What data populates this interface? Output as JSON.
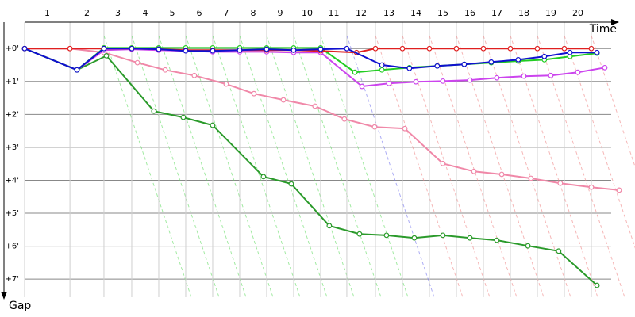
{
  "chart_data": {
    "type": "line",
    "x_label": "Time",
    "y_label": "Gap",
    "categories": [
      "1",
      "2",
      "3",
      "4",
      "5",
      "6",
      "7",
      "8",
      "9",
      "10",
      "11",
      "12",
      "13",
      "14",
      "15",
      "16",
      "17",
      "18",
      "19",
      "20"
    ],
    "x_grid": [
      0,
      1.68,
      2.94,
      3.97,
      4.97,
      5.97,
      6.97,
      7.97,
      8.97,
      9.97,
      10.97,
      11.94,
      13.0,
      14.0,
      15.0,
      16.0,
      17.0,
      18.0,
      19.0,
      20.0,
      21.0
    ],
    "xlim": [
      0,
      22.03
    ],
    "ylim": [
      -0.8,
      7.55
    ],
    "yticks": [
      {
        "value": 0,
        "label": "+0'"
      },
      {
        "value": 1,
        "label": "+1'"
      },
      {
        "value": 2,
        "label": "+2'"
      },
      {
        "value": 3,
        "label": "+3'"
      },
      {
        "value": 4,
        "label": "+4'"
      },
      {
        "value": 5,
        "label": "+5'"
      },
      {
        "value": 6,
        "label": "+6'"
      },
      {
        "value": 7,
        "label": "+7'"
      }
    ],
    "grid": true,
    "series": [
      {
        "color": "#f088a8",
        "x": [
          0,
          1.68,
          2.94,
          4.18,
          5.21,
          6.29,
          7.47,
          8.5,
          9.59,
          10.76,
          11.85,
          12.97,
          14.09,
          15.5,
          16.65,
          17.68,
          18.76,
          19.85,
          21.0,
          22.03
        ],
        "values": [
          0,
          0,
          0.12,
          0.43,
          0.65,
          0.82,
          1.08,
          1.37,
          1.56,
          1.75,
          2.14,
          2.38,
          2.43,
          3.49,
          3.73,
          3.82,
          3.94,
          4.09,
          4.21,
          4.3
        ]
      },
      {
        "color": "#2a9a2a",
        "x": [
          0,
          1.94,
          3.03,
          4.79,
          5.88,
          6.97,
          8.85,
          9.88,
          11.29,
          12.41,
          13.41,
          14.44,
          15.5,
          16.5,
          17.5,
          18.65,
          19.79,
          21.21
        ],
        "values": [
          0,
          0.65,
          0.22,
          1.9,
          2.09,
          2.33,
          3.89,
          4.11,
          5.38,
          5.63,
          5.67,
          5.75,
          5.67,
          5.75,
          5.82,
          5.99,
          6.15,
          7.19
        ]
      },
      {
        "color": "#cc44ee",
        "x": [
          0,
          1.94,
          2.94,
          3.97,
          4.97,
          5.97,
          6.97,
          7.97,
          8.97,
          9.97,
          10.97,
          12.5,
          13.5,
          14.5,
          15.5,
          16.5,
          17.5,
          18.5,
          19.5,
          20.5,
          21.5
        ],
        "values": [
          0,
          0.65,
          0.05,
          0.02,
          0.05,
          0.07,
          0.1,
          0.1,
          0.1,
          0.12,
          0.12,
          1.15,
          1.06,
          1.01,
          0.99,
          0.96,
          0.89,
          0.84,
          0.82,
          0.72,
          0.58
        ]
      },
      {
        "color": "#22cc22",
        "x": [
          0,
          1.94,
          2.94,
          3.97,
          4.97,
          5.97,
          6.97,
          7.97,
          8.97,
          9.97,
          10.97,
          12.24,
          13.24,
          14.26,
          15.29,
          16.29,
          17.29,
          18.29,
          19.26,
          20.21,
          21.21
        ],
        "values": [
          0,
          0.65,
          -0.02,
          -0.02,
          -0.02,
          -0.02,
          -0.02,
          -0.02,
          -0.02,
          -0.02,
          -0.02,
          0.72,
          0.65,
          0.58,
          0.53,
          0.48,
          0.43,
          0.38,
          0.34,
          0.24,
          0.14
        ]
      },
      {
        "color": "#e02020",
        "x": [
          0,
          1.68,
          2.94,
          3.97,
          4.97,
          5.97,
          6.97,
          7.97,
          8.97,
          9.97,
          10.97,
          12.3,
          13.0,
          14.0,
          15.0,
          16.0,
          17.0,
          18.0,
          19.0,
          20.0,
          21.0
        ],
        "values": [
          0,
          0,
          0,
          0,
          0.02,
          0.05,
          0.05,
          0.05,
          0.05,
          0.05,
          0.07,
          0.12,
          0,
          0,
          0,
          0,
          0,
          0,
          0,
          0,
          0
        ]
      },
      {
        "color": "#1010d0",
        "x": [
          0,
          1.94,
          2.94,
          3.97,
          4.97,
          5.97,
          6.97,
          7.97,
          8.97,
          9.97,
          10.97,
          11.94,
          13.24,
          14.26,
          15.29,
          16.29,
          17.29,
          18.29,
          19.26,
          20.21,
          21.21
        ],
        "values": [
          0,
          0.65,
          0,
          0,
          0.02,
          0.07,
          0.07,
          0.05,
          0.02,
          0.05,
          0.02,
          0,
          0.5,
          0.6,
          0.53,
          0.48,
          0.41,
          0.34,
          0.24,
          0.12,
          0.12
        ]
      }
    ]
  }
}
